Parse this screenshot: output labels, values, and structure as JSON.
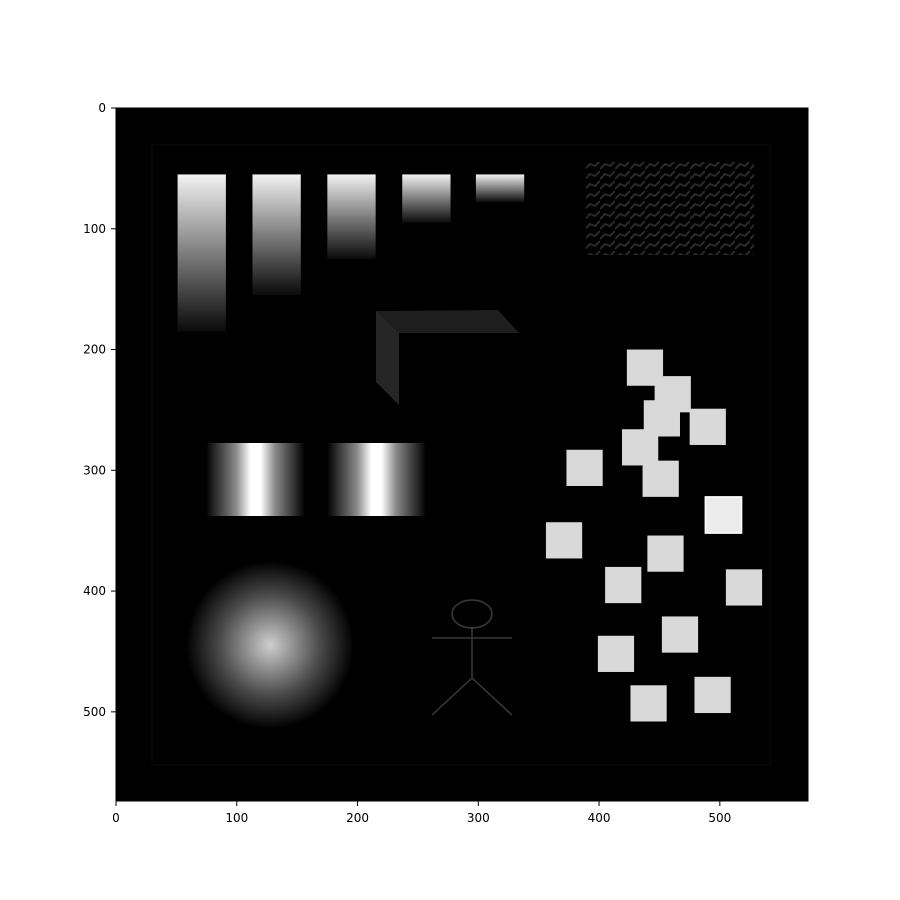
{
  "figure": {
    "x_ticks": [
      "0",
      "100",
      "200",
      "300",
      "400",
      "500"
    ],
    "y_ticks": [
      "0",
      "100",
      "200",
      "300",
      "400",
      "500"
    ]
  },
  "image": {
    "description_tags": [
      "gradient-bars",
      "striped-bands",
      "radial-blob",
      "stick-figure",
      "scattered-squares",
      "3d-bracket",
      "hatched-texture"
    ],
    "bars": [
      {
        "top": 55,
        "bottom": 185
      },
      {
        "top": 55,
        "bottom": 155
      },
      {
        "top": 55,
        "bottom": 125
      },
      {
        "top": 55,
        "bottom": 95
      },
      {
        "top": 55,
        "bottom": 78
      }
    ],
    "squares": [
      [
        438,
        215
      ],
      [
        461,
        237
      ],
      [
        452,
        257
      ],
      [
        490,
        264
      ],
      [
        434,
        281
      ],
      [
        451,
        307
      ],
      [
        388,
        298
      ],
      [
        503,
        337
      ],
      [
        371,
        358
      ],
      [
        455,
        369
      ],
      [
        420,
        395
      ],
      [
        520,
        397
      ],
      [
        467,
        436
      ],
      [
        414,
        452
      ],
      [
        494,
        486
      ],
      [
        441,
        493
      ]
    ]
  }
}
